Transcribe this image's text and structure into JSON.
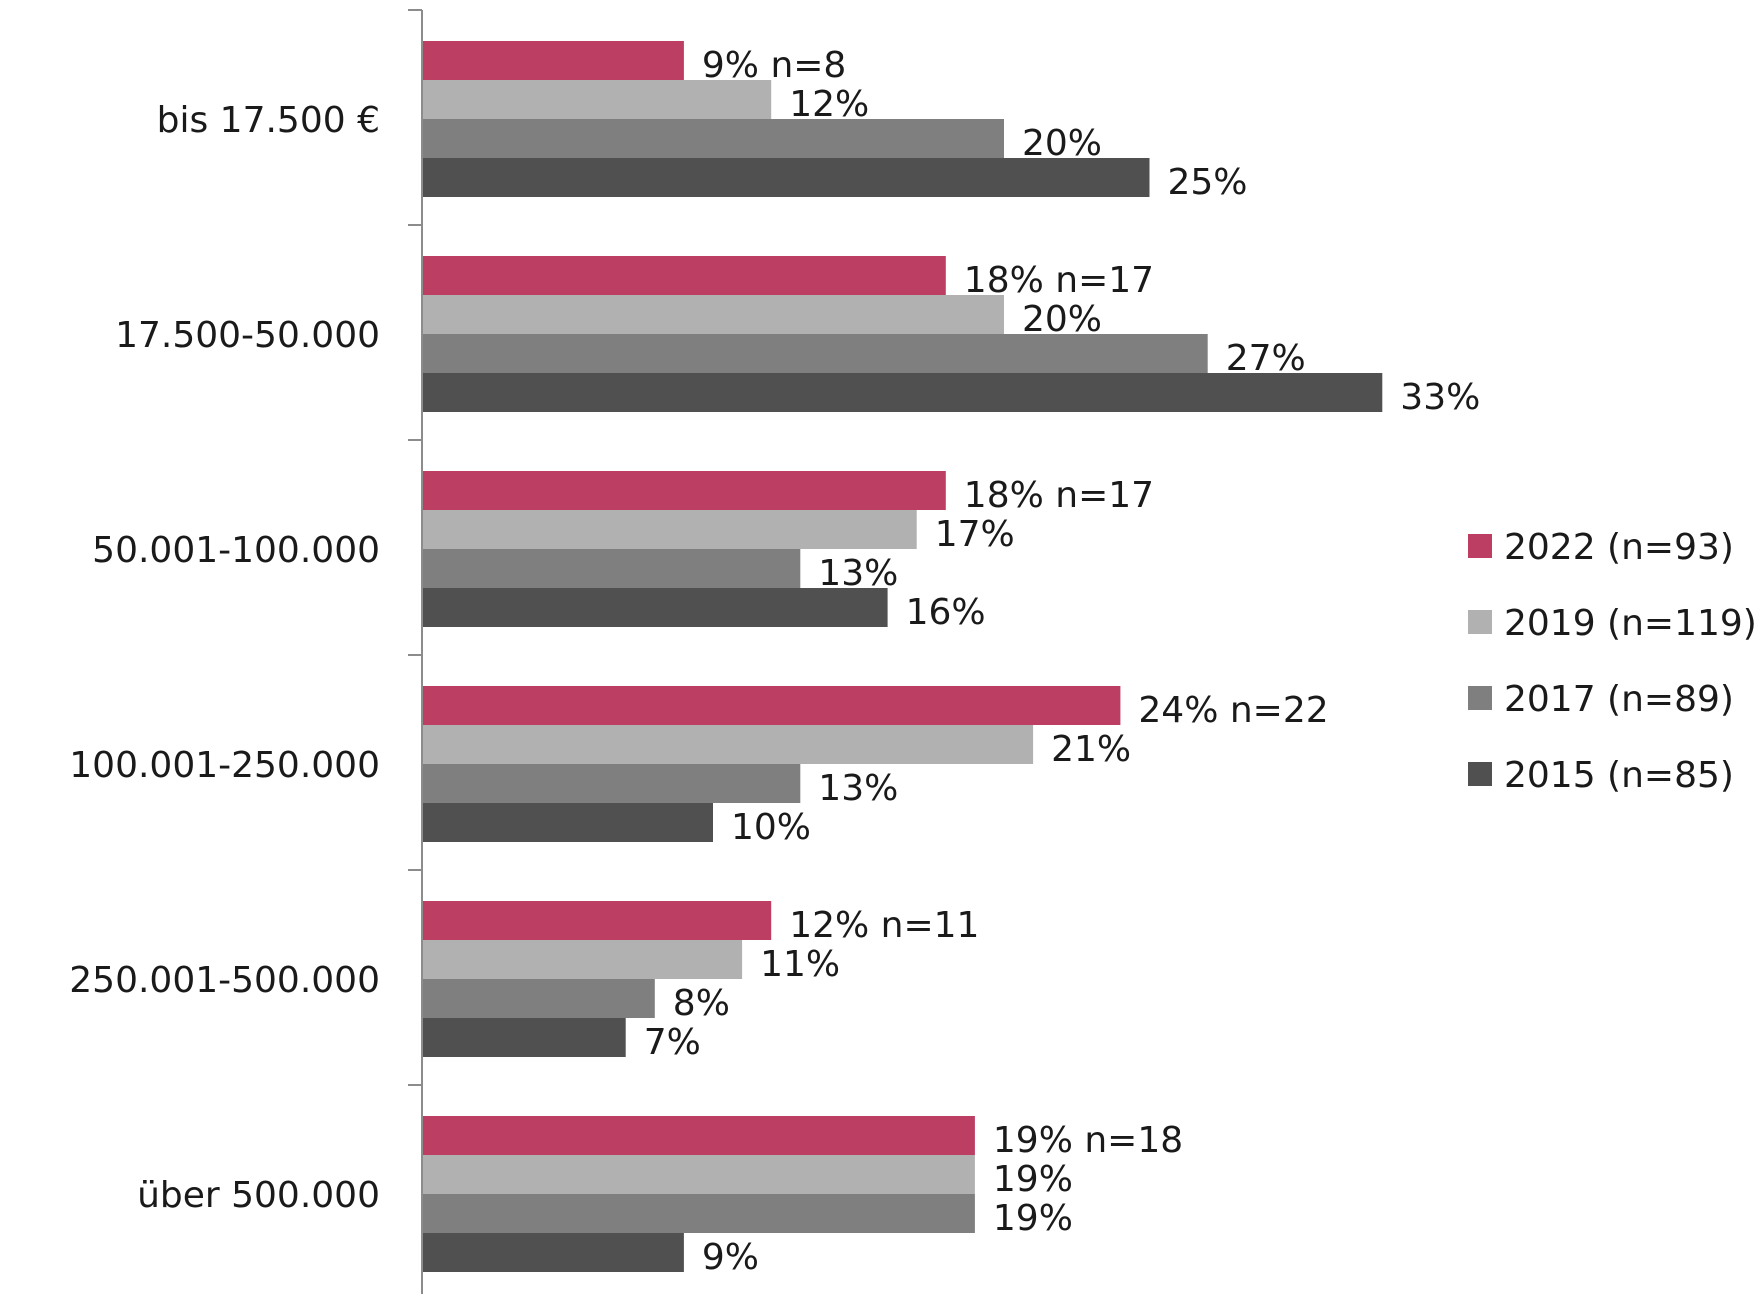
{
  "chart_data": {
    "type": "bar",
    "orientation": "horizontal",
    "categories": [
      "bis 17.500 €",
      "17.500-50.000",
      "50.001-100.000",
      "100.001-250.000",
      "250.001-500.000",
      "über 500.000"
    ],
    "series": [
      {
        "name": "2022 (n=93)",
        "color": "#bc3e63",
        "values": [
          9,
          18,
          18,
          24,
          12,
          19
        ],
        "labels": [
          "9% n=8",
          "18% n=17",
          "18% n=17",
          "24% n=22",
          "12% n=11",
          "19% n=18"
        ]
      },
      {
        "name": "2019 (n=119)",
        "color": "#b1b1b1",
        "values": [
          12,
          20,
          17,
          21,
          11,
          19
        ],
        "labels": [
          "12%",
          "20%",
          "17%",
          "21%",
          "11%",
          "19%"
        ]
      },
      {
        "name": "2017 (n=89)",
        "color": "#7f7f7f",
        "values": [
          20,
          27,
          13,
          13,
          8,
          19
        ],
        "labels": [
          "20%",
          "27%",
          "13%",
          "13%",
          "8%",
          "19%"
        ]
      },
      {
        "name": "2015 (n=85)",
        "color": "#505050",
        "values": [
          25,
          33,
          16,
          10,
          7,
          9
        ],
        "labels": [
          "25%",
          "33%",
          "16%",
          "10%",
          "7%",
          "9%"
        ]
      }
    ],
    "xlim": [
      0,
      35
    ],
    "grid": false,
    "legend_position": "right"
  }
}
